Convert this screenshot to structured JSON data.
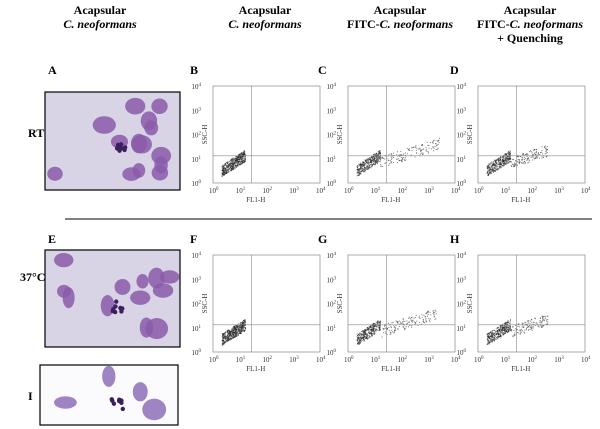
{
  "columns": [
    {
      "title": "Acapsular",
      "species": "C. neoformans"
    },
    {
      "title": "Acapsular",
      "species": "C. neoformans"
    },
    {
      "title": "Acapsular",
      "prefix": "FITC-",
      "species": "C. neoformans"
    },
    {
      "title": "Acapsular",
      "prefix": "FITC-",
      "species": "C. neoformans",
      "note": "+ Quenching"
    }
  ],
  "rows": [
    "RT",
    "37°C"
  ],
  "panels": [
    "A",
    "B",
    "C",
    "D",
    "E",
    "F",
    "G",
    "H",
    "I"
  ],
  "plot_axes": {
    "y_label": "SSC-H",
    "x_label": "FL1-H",
    "tick_base": "10",
    "tick_exponents": [
      "0",
      "1",
      "2",
      "3",
      "4"
    ]
  }
}
